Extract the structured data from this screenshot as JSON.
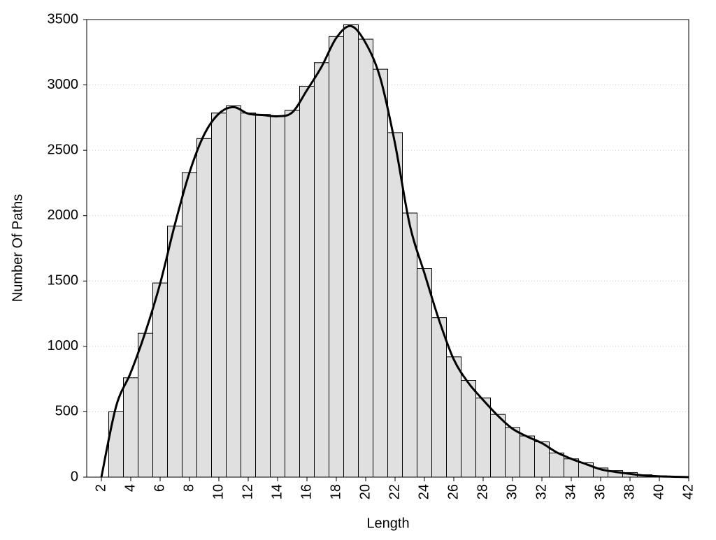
{
  "chart_data": {
    "type": "histogram",
    "x_label": "Length",
    "y_label": "Number Of Paths",
    "bins": [
      2.5,
      3.5,
      4.5,
      5.5,
      6.5,
      7.5,
      8.5,
      9.5,
      10.5,
      11.5,
      12.5,
      13.5,
      14.5,
      15.5,
      16.5,
      17.5,
      18.5,
      19.5,
      20.5,
      21.5,
      22.5,
      23.5,
      24.5,
      25.5,
      26.5,
      27.5,
      28.5,
      29.5,
      30.5,
      31.5,
      32.5,
      33.5,
      34.5,
      35.5,
      36.5,
      37.5,
      38.5,
      39.5,
      40.5,
      41.5
    ],
    "values": [
      500,
      760,
      1100,
      1485,
      1920,
      2330,
      2590,
      2785,
      2840,
      2785,
      2775,
      2765,
      2805,
      2990,
      3170,
      3370,
      3460,
      3350,
      3120,
      2635,
      2020,
      1595,
      1220,
      920,
      740,
      605,
      480,
      380,
      315,
      270,
      185,
      140,
      110,
      70,
      50,
      35,
      18,
      10,
      5
    ],
    "color": "#e0e0e0",
    "curve": {
      "x": [
        2,
        3,
        4,
        5,
        6,
        7,
        8,
        9,
        10,
        11,
        12,
        13,
        14,
        15,
        16,
        17,
        18,
        19,
        20,
        21,
        22,
        23,
        24,
        25,
        26,
        27,
        28,
        29,
        30,
        31,
        32,
        33,
        34,
        35,
        36,
        37,
        38,
        39,
        40,
        41,
        42
      ],
      "values": [
        0,
        540,
        800,
        1110,
        1480,
        1930,
        2330,
        2620,
        2780,
        2830,
        2780,
        2770,
        2760,
        2790,
        2960,
        3140,
        3360,
        3450,
        3320,
        3050,
        2550,
        1930,
        1560,
        1200,
        900,
        720,
        590,
        470,
        370,
        310,
        260,
        190,
        140,
        100,
        60,
        40,
        25,
        12,
        6,
        3,
        0
      ],
      "color": "#000000"
    },
    "xlim": [
      1,
      42
    ],
    "ylim": [
      0,
      3500
    ],
    "xticks": [
      2,
      4,
      6,
      8,
      10,
      12,
      14,
      16,
      18,
      20,
      22,
      24,
      26,
      28,
      30,
      32,
      34,
      36,
      38,
      40,
      42
    ],
    "yticks": [
      0,
      500,
      1000,
      1500,
      2000,
      2500,
      3000,
      3500
    ],
    "grid": true
  }
}
